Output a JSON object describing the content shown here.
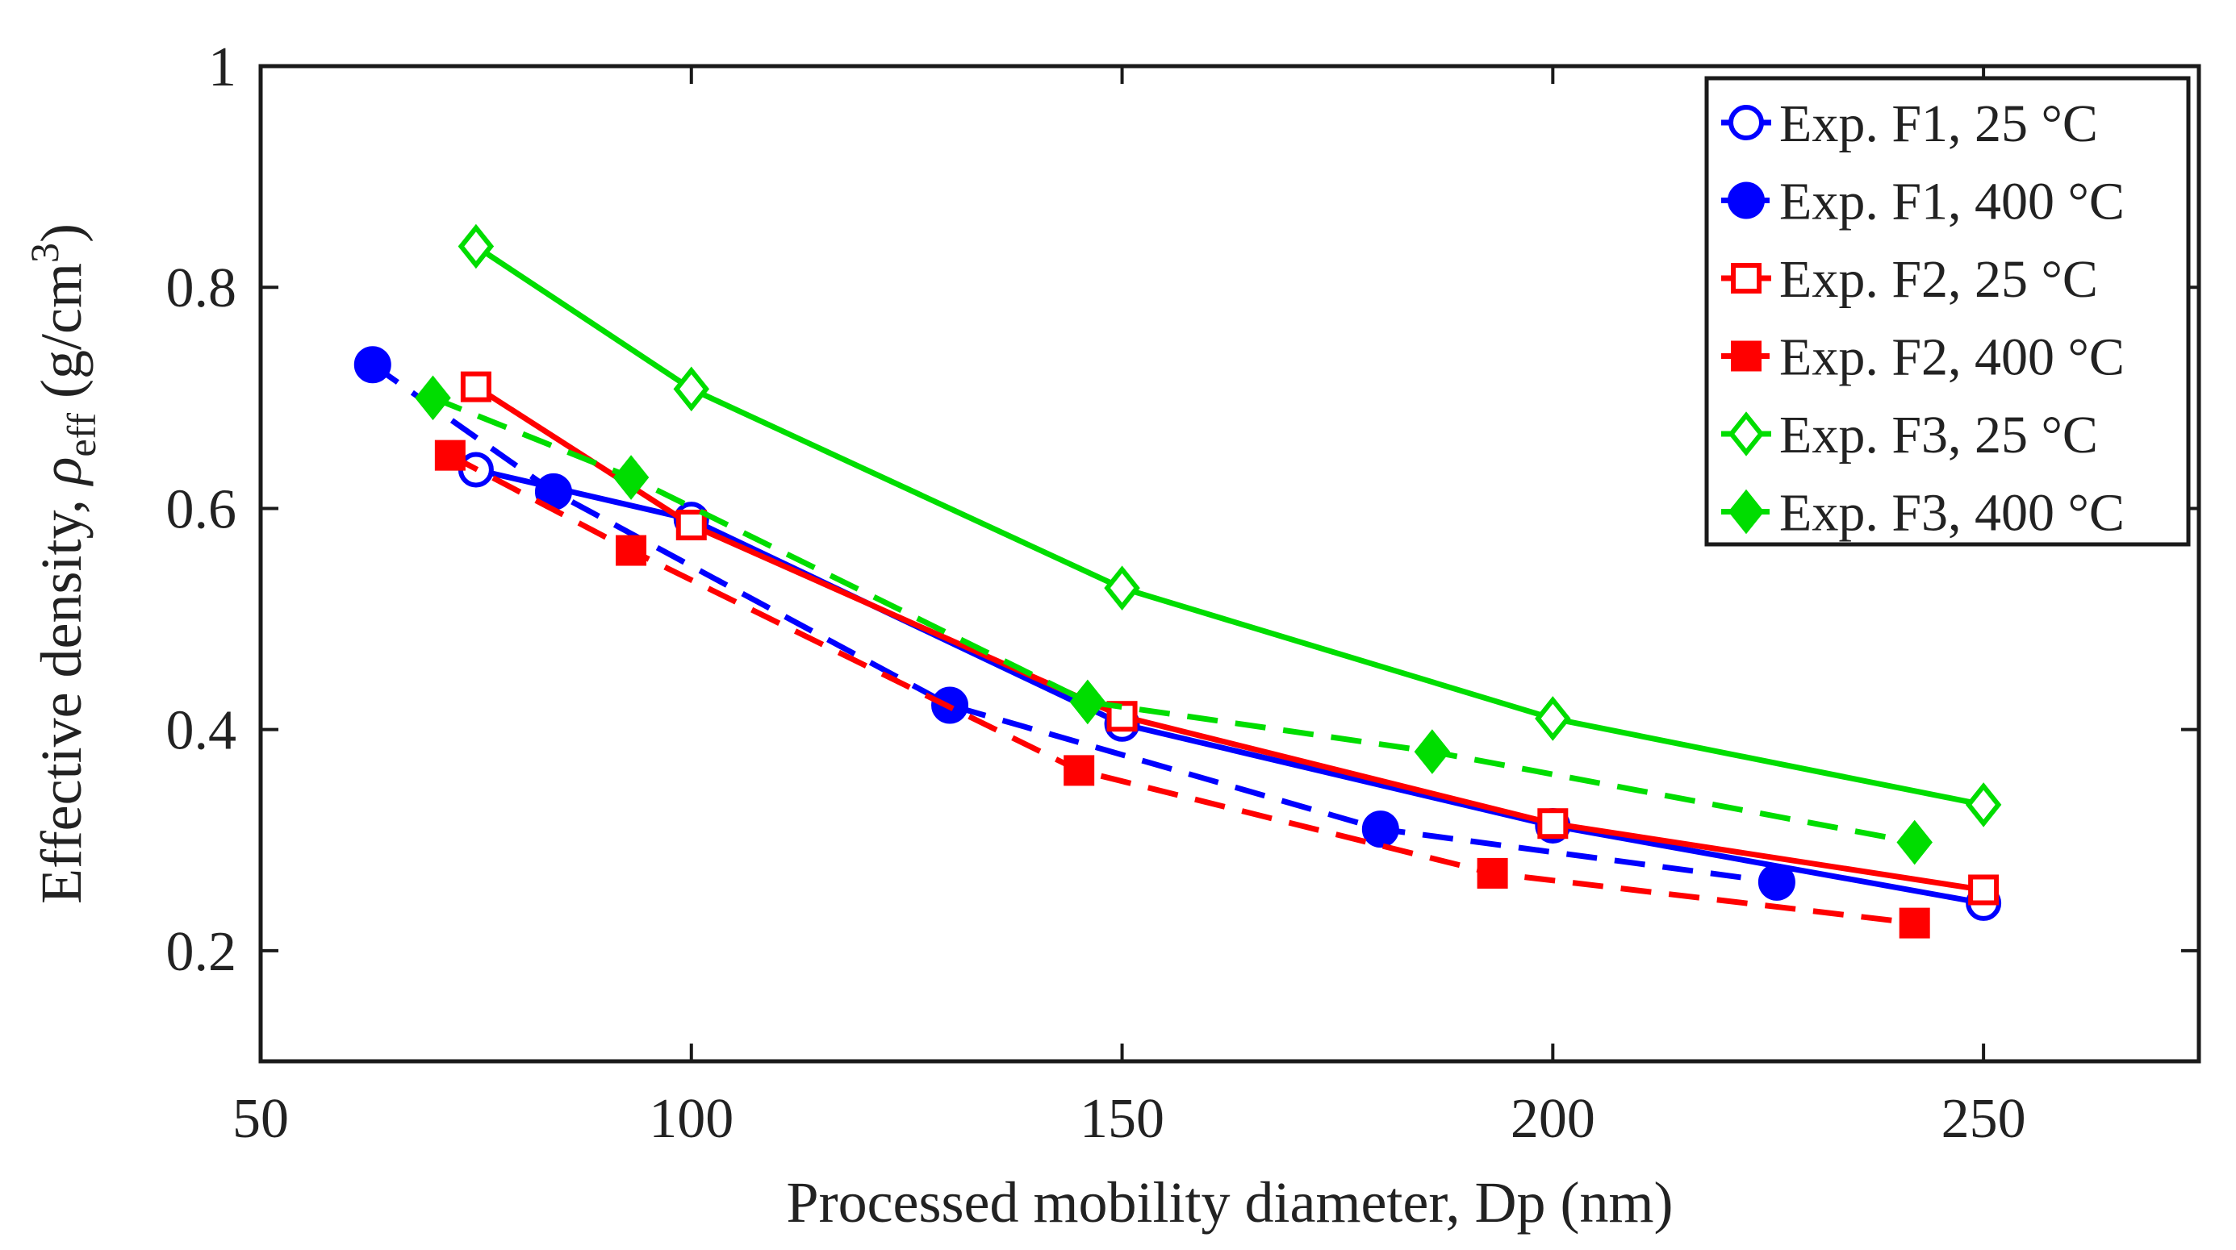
{
  "chart_data": {
    "type": "line",
    "title": "",
    "xlabel": "Processed mobility diameter, Dp (nm)",
    "ylabel": {
      "prefix": "Effective density, ",
      "symbol": "ρ",
      "subscript": "eff",
      "unit_open": " (g/cm",
      "superscript": "3",
      "unit_close": ")"
    },
    "xlim": [
      50,
      275
    ],
    "ylim": [
      0.1,
      1.0
    ],
    "xticks": [
      50,
      100,
      150,
      200,
      250
    ],
    "xtick_labels": [
      "50",
      "100",
      "150",
      "200",
      "250"
    ],
    "yticks": [
      0.2,
      0.4,
      0.6,
      0.8,
      1.0
    ],
    "ytick_labels": [
      "0.2",
      "0.4",
      "0.6",
      "0.8",
      "1"
    ],
    "grid": false,
    "legend_position": "top-right",
    "series": [
      {
        "name": "Exp. F1, 25 °C",
        "color": "#0000ff",
        "line": "solid",
        "marker": "circle",
        "filled": false,
        "x": [
          75,
          100,
          150,
          200,
          250
        ],
        "y": [
          0.635,
          0.59,
          0.405,
          0.313,
          0.243
        ]
      },
      {
        "name": "Exp. F1, 400 °C",
        "color": "#0000ff",
        "line": "dashed",
        "marker": "circle",
        "filled": true,
        "x": [
          63,
          84,
          130,
          180,
          226
        ],
        "y": [
          0.73,
          0.615,
          0.422,
          0.31,
          0.262
        ]
      },
      {
        "name": "Exp. F2, 25 °C",
        "color": "#ff0000",
        "line": "solid",
        "marker": "square",
        "filled": false,
        "x": [
          75,
          100,
          150,
          200,
          250
        ],
        "y": [
          0.71,
          0.585,
          0.412,
          0.315,
          0.255
        ]
      },
      {
        "name": "Exp. F2, 400 °C",
        "color": "#ff0000",
        "line": "dashed",
        "marker": "square",
        "filled": true,
        "x": [
          72,
          93,
          145,
          193,
          242
        ],
        "y": [
          0.648,
          0.562,
          0.363,
          0.27,
          0.225
        ]
      },
      {
        "name": "Exp. F3, 25 °C",
        "color": "#00dd00",
        "line": "solid",
        "marker": "diamond",
        "filled": false,
        "x": [
          75,
          100,
          150,
          200,
          250
        ],
        "y": [
          0.837,
          0.708,
          0.528,
          0.41,
          0.332
        ]
      },
      {
        "name": "Exp. F3, 400 °C",
        "color": "#00dd00",
        "line": "dashed",
        "marker": "diamond",
        "filled": true,
        "x": [
          70,
          93,
          146,
          186,
          242
        ],
        "y": [
          0.7,
          0.628,
          0.425,
          0.38,
          0.298
        ]
      }
    ]
  }
}
